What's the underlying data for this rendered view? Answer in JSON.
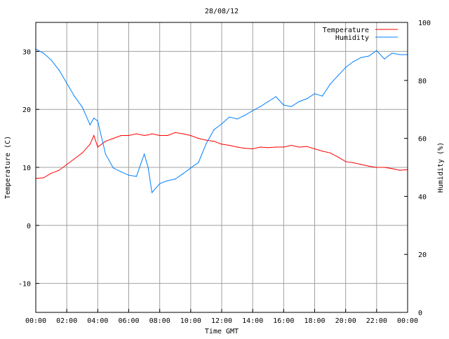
{
  "chart_data": {
    "type": "line",
    "title": "28/08/12",
    "xlabel": "Time GMT",
    "ylabel": "Temperature (C)",
    "y2label": "Humidity (%)",
    "xlim": [
      0,
      24
    ],
    "ylim": [
      -15,
      35
    ],
    "y2lim": [
      0,
      100
    ],
    "grid": true,
    "legend_position": "top-right",
    "x_ticks": [
      0,
      2,
      4,
      6,
      8,
      10,
      12,
      14,
      16,
      18,
      20,
      22,
      24
    ],
    "x_tick_labels": [
      "00:00",
      "02:00",
      "04:00",
      "06:00",
      "08:00",
      "10:00",
      "12:00",
      "14:00",
      "16:00",
      "18:00",
      "20:00",
      "22:00",
      "00:00"
    ],
    "y_ticks": [
      30,
      20,
      10,
      0,
      -10
    ],
    "y_tick_labels": [
      "30",
      "20",
      "10",
      "0",
      "-10"
    ],
    "y2_ticks": [
      100,
      80,
      60,
      40,
      20,
      0
    ],
    "y2_tick_labels": [
      "100",
      "80",
      "60",
      "40",
      "20",
      "0"
    ],
    "x": [
      0,
      0.5,
      1,
      1.5,
      2,
      2.5,
      3,
      3.5,
      3.75,
      4,
      4.5,
      5,
      5.5,
      6,
      6.5,
      7,
      7.25,
      7.5,
      8,
      8.5,
      9,
      9.5,
      10,
      10.5,
      11,
      11.5,
      12,
      12.5,
      13,
      13.5,
      14,
      14.5,
      15,
      15.5,
      16,
      16.5,
      17,
      17.5,
      18,
      18.5,
      19,
      19.5,
      20,
      20.5,
      21,
      21.5,
      22,
      22.5,
      23,
      23.5,
      24
    ],
    "series": [
      {
        "name": "Temperature",
        "color": "#ff0000",
        "axis": "left",
        "values": [
          8.1,
          8.2,
          9.0,
          9.5,
          10.5,
          11.5,
          12.5,
          14.0,
          15.5,
          13.5,
          14.5,
          15.0,
          15.5,
          15.5,
          15.8,
          15.5,
          15.6,
          15.8,
          15.5,
          15.5,
          16.0,
          15.8,
          15.5,
          15.0,
          14.7,
          14.5,
          14.0,
          13.8,
          13.5,
          13.3,
          13.2,
          13.5,
          13.4,
          13.5,
          13.5,
          13.8,
          13.5,
          13.6,
          13.2,
          12.8,
          12.5,
          11.8,
          11.0,
          10.8,
          10.5,
          10.2,
          10.0,
          10.0,
          9.8,
          9.5,
          9.6
        ]
      },
      {
        "name": "Humidity",
        "color": "#0080ff",
        "axis": "right",
        "values": [
          90.8,
          89.4,
          87.0,
          83.6,
          79.0,
          74.5,
          70.8,
          64.7,
          67.0,
          66.0,
          54.6,
          49.8,
          48.5,
          47.3,
          46.9,
          54.6,
          50.0,
          41.3,
          44.4,
          45.4,
          46.0,
          47.8,
          49.8,
          51.7,
          58.2,
          63.0,
          65.0,
          67.4,
          66.7,
          68.0,
          69.6,
          71.0,
          72.7,
          74.4,
          71.5,
          71.0,
          72.7,
          73.7,
          75.4,
          74.6,
          78.7,
          81.6,
          84.5,
          86.5,
          87.9,
          88.4,
          90.3,
          87.4,
          89.4,
          88.9,
          88.9
        ]
      }
    ]
  }
}
